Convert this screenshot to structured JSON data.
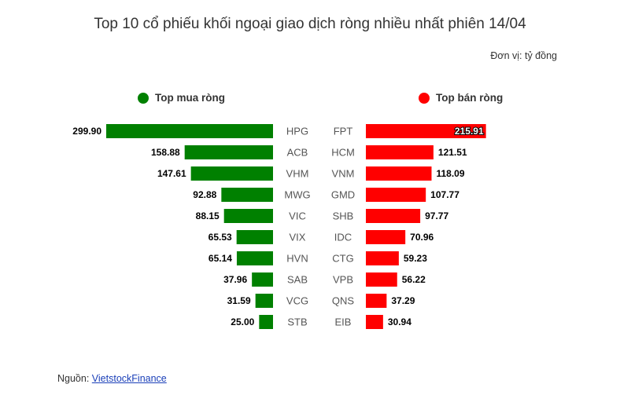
{
  "title": "Top 10 cổ phiếu khối ngoại giao dịch ròng nhiều nhất phiên 14/04",
  "unit": "Đơn vị: tỷ đồng",
  "legend": {
    "buy": "Top mua ròng",
    "sell": "Top bán ròng"
  },
  "source": {
    "label": "Nguồn:",
    "link": "VietstockFinance"
  },
  "colors": {
    "buy": "#008000",
    "sell": "#ff0000"
  },
  "chart_data": [
    {
      "type": "bar",
      "orientation": "horizontal",
      "series": [
        {
          "name": "Top mua ròng"
        }
      ],
      "categories": [
        "HPG",
        "ACB",
        "VHM",
        "MWG",
        "VIC",
        "VIX",
        "HVN",
        "SAB",
        "VCG",
        "STB"
      ],
      "values": [
        299.9,
        158.88,
        147.61,
        92.88,
        88.15,
        65.53,
        65.14,
        37.96,
        31.59,
        25.0
      ],
      "labels": [
        "299.90",
        "158.88",
        "147.61",
        "92.88",
        "88.15",
        "65.53",
        "65.14",
        "37.96",
        "31.59",
        "25.00"
      ]
    },
    {
      "type": "bar",
      "orientation": "horizontal",
      "series": [
        {
          "name": "Top bán ròng"
        }
      ],
      "categories": [
        "FPT",
        "HCM",
        "VNM",
        "GMD",
        "SHB",
        "IDC",
        "CTG",
        "VPB",
        "QNS",
        "EIB"
      ],
      "values": [
        215.91,
        121.51,
        118.09,
        107.77,
        97.77,
        70.96,
        59.23,
        56.22,
        37.29,
        30.94
      ],
      "labels": [
        "215.91",
        "121.51",
        "118.09",
        "107.77",
        "97.77",
        "70.96",
        "59.23",
        "56.22",
        "37.29",
        "30.94"
      ]
    }
  ]
}
